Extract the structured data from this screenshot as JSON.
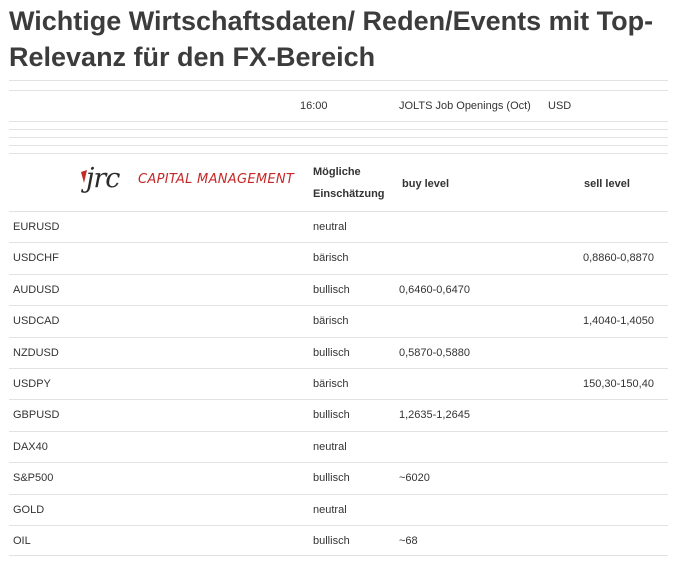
{
  "title": "Wichtige Wirtschaftsdaten/ Reden/Events mit Top-Relevanz für den FX-Bereich",
  "event": {
    "time": "16:00",
    "name": "JOLTS Job Openings (Oct)",
    "currency": "USD"
  },
  "logo": {
    "mark": "jrc",
    "text": "CAPITAL MANAGEMENT",
    "accent_color": "#c62828"
  },
  "table": {
    "headers": {
      "assessment_line1": "Mögliche",
      "assessment_line2": "Einschätzung",
      "buy": "buy level",
      "sell": "sell level"
    },
    "rows": [
      {
        "instrument": "EURUSD",
        "assessment": "neutral",
        "buy": "",
        "sell": ""
      },
      {
        "instrument": "USDCHF",
        "assessment": "bärisch",
        "buy": "",
        "sell": "0,8860-0,8870"
      },
      {
        "instrument": "AUDUSD",
        "assessment": "bullisch",
        "buy": "0,6460-0,6470",
        "sell": ""
      },
      {
        "instrument": "USDCAD",
        "assessment": "bärisch",
        "buy": "",
        "sell": "1,4040-1,4050"
      },
      {
        "instrument": "NZDUSD",
        "assessment": "bullisch",
        "buy": "0,5870-0,5880",
        "sell": ""
      },
      {
        "instrument": "USDPY",
        "assessment": "bärisch",
        "buy": "",
        "sell": "150,30-150,40"
      },
      {
        "instrument": "GBPUSD",
        "assessment": "bullisch",
        "buy": "1,2635-1,2645",
        "sell": ""
      },
      {
        "instrument": "DAX40",
        "assessment": "neutral",
        "buy": "",
        "sell": ""
      },
      {
        "instrument": "S&P500",
        "assessment": "bullisch",
        "buy": "~6020",
        "sell": ""
      },
      {
        "instrument": "GOLD",
        "assessment": "neutral",
        "buy": "",
        "sell": ""
      },
      {
        "instrument": "OIL",
        "assessment": "bullisch",
        "buy": "~68",
        "sell": ""
      }
    ]
  }
}
